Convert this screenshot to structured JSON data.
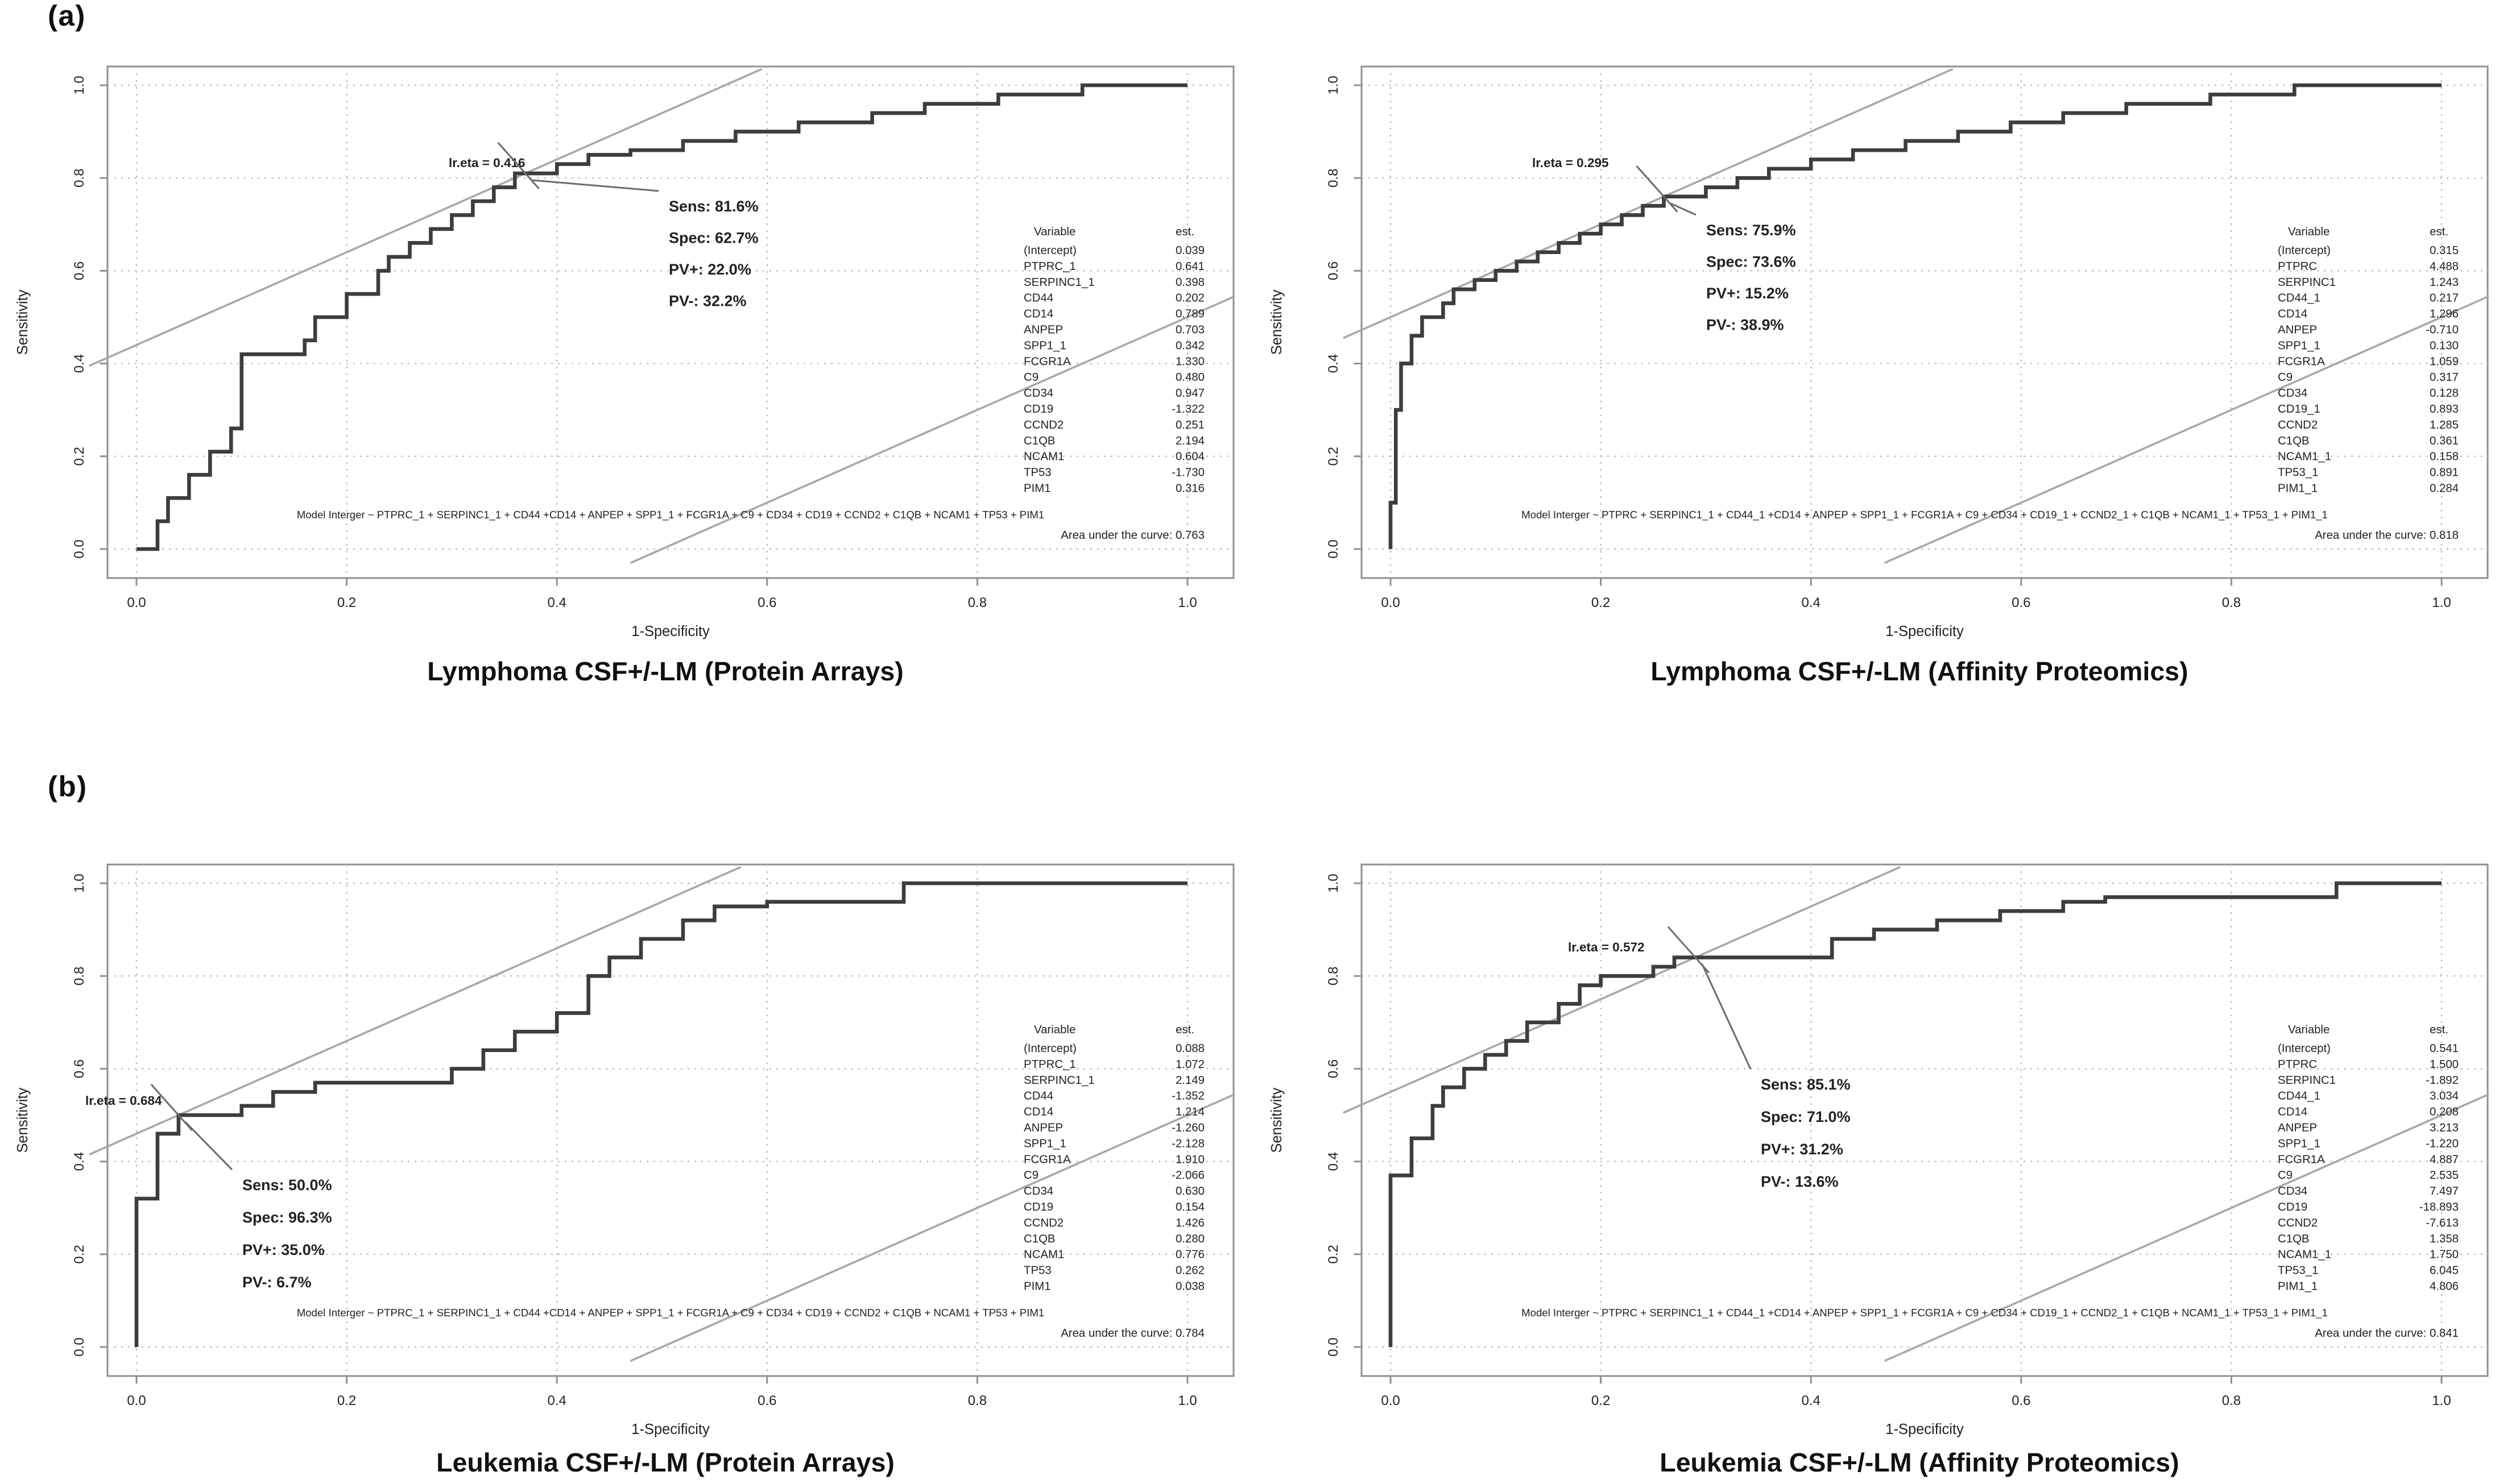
{
  "section_labels": [
    "(a)",
    "(b)"
  ],
  "chart_data": [
    {
      "type": "line",
      "title": "Lymphoma CSF+/-LM (Protein Arrays)",
      "xlabel": "1-Specificity",
      "ylabel": "Sensitivity",
      "xlim": [
        0,
        1
      ],
      "ylim": [
        0,
        1
      ],
      "grid": true,
      "xticks": [
        "0.0",
        "0.2",
        "0.4",
        "0.6",
        "0.8",
        "1.0"
      ],
      "yticks": [
        "0.0",
        "0.2",
        "0.4",
        "0.6",
        "0.8",
        "1.0"
      ],
      "threshold_label": "lr.eta = 0.416",
      "threshold_point": {
        "x": 0.37,
        "y": 0.81
      },
      "metrics": [
        "Sens: 81.6%",
        "Spec: 62.7%",
        "PV+: 22.0%",
        "PV-: 32.2%"
      ],
      "model_formula": "Model Interger ~ PTPRC_1 + SERPINC1_1 + CD44 +CD14 + ANPEP + SPP1_1 + FCGR1A + C9 + CD34 + CD19 + CCND2 + C1QB + NCAM1 + TP53 + PIM1",
      "auc": 0.763,
      "auc_label": "Area under the curve: 0.763",
      "coef_table": {
        "headers": [
          "Variable",
          "est."
        ],
        "rows": [
          [
            "(Intercept)",
            "0.039"
          ],
          [
            "PTPRC_1",
            "0.641"
          ],
          [
            "SERPINC1_1",
            "0.398"
          ],
          [
            "CD44",
            "0.202"
          ],
          [
            "CD14",
            "0.789"
          ],
          [
            "ANPEP",
            "0.703"
          ],
          [
            "SPP1_1",
            "0.342"
          ],
          [
            "FCGR1A",
            "1.330"
          ],
          [
            "C9",
            "0.480"
          ],
          [
            "CD34",
            "0.947"
          ],
          [
            "CD19",
            "-1.322"
          ],
          [
            "CCND2",
            "0.251"
          ],
          [
            "C1QB",
            "2.194"
          ],
          [
            "NCAM1",
            "0.604"
          ],
          [
            "TP53",
            "-1.730"
          ],
          [
            "PIM1",
            "0.316"
          ]
        ]
      },
      "roc_points": [
        [
          0,
          0
        ],
        [
          0.02,
          0
        ],
        [
          0.02,
          0.06
        ],
        [
          0.03,
          0.06
        ],
        [
          0.03,
          0.11
        ],
        [
          0.05,
          0.11
        ],
        [
          0.05,
          0.16
        ],
        [
          0.07,
          0.16
        ],
        [
          0.07,
          0.21
        ],
        [
          0.09,
          0.21
        ],
        [
          0.09,
          0.26
        ],
        [
          0.1,
          0.26
        ],
        [
          0.1,
          0.42
        ],
        [
          0.16,
          0.42
        ],
        [
          0.16,
          0.45
        ],
        [
          0.17,
          0.45
        ],
        [
          0.17,
          0.5
        ],
        [
          0.2,
          0.5
        ],
        [
          0.2,
          0.55
        ],
        [
          0.23,
          0.55
        ],
        [
          0.23,
          0.6
        ],
        [
          0.24,
          0.6
        ],
        [
          0.24,
          0.63
        ],
        [
          0.26,
          0.63
        ],
        [
          0.26,
          0.66
        ],
        [
          0.28,
          0.66
        ],
        [
          0.28,
          0.69
        ],
        [
          0.3,
          0.69
        ],
        [
          0.3,
          0.72
        ],
        [
          0.32,
          0.72
        ],
        [
          0.32,
          0.75
        ],
        [
          0.34,
          0.75
        ],
        [
          0.34,
          0.78
        ],
        [
          0.36,
          0.78
        ],
        [
          0.36,
          0.81
        ],
        [
          0.4,
          0.81
        ],
        [
          0.4,
          0.83
        ],
        [
          0.43,
          0.83
        ],
        [
          0.43,
          0.85
        ],
        [
          0.47,
          0.85
        ],
        [
          0.47,
          0.86
        ],
        [
          0.52,
          0.86
        ],
        [
          0.52,
          0.88
        ],
        [
          0.57,
          0.88
        ],
        [
          0.57,
          0.9
        ],
        [
          0.63,
          0.9
        ],
        [
          0.63,
          0.92
        ],
        [
          0.7,
          0.92
        ],
        [
          0.7,
          0.94
        ],
        [
          0.75,
          0.94
        ],
        [
          0.75,
          0.96
        ],
        [
          0.82,
          0.96
        ],
        [
          0.82,
          0.98
        ],
        [
          0.9,
          0.98
        ],
        [
          0.9,
          1
        ],
        [
          1,
          1
        ]
      ]
    },
    {
      "type": "line",
      "title": "Lymphoma CSF+/-LM (Affinity Proteomics)",
      "xlabel": "1-Specificity",
      "ylabel": "Sensitivity",
      "xlim": [
        0,
        1
      ],
      "ylim": [
        0,
        1
      ],
      "grid": true,
      "xticks": [
        "0.0",
        "0.2",
        "0.4",
        "0.6",
        "0.8",
        "1.0"
      ],
      "yticks": [
        "0.0",
        "0.2",
        "0.4",
        "0.6",
        "0.8",
        "1.0"
      ],
      "threshold_label": "lr.eta = 0.295",
      "threshold_point": {
        "x": 0.26,
        "y": 0.76
      },
      "metrics": [
        "Sens: 75.9%",
        "Spec: 73.6%",
        "PV+: 15.2%",
        "PV-: 38.9%"
      ],
      "model_formula": "Model Interger ~ PTPRC + SERPINC1_1 + CD44_1 +CD14 + ANPEP + SPP1_1 + FCGR1A + C9 + CD34 + CD19_1 + CCND2_1 + C1QB + NCAM1_1 + TP53_1 + PIM1_1",
      "auc": 0.818,
      "auc_label": "Area under the curve: 0.818",
      "coef_table": {
        "headers": [
          "Variable",
          "est."
        ],
        "rows": [
          [
            "(Intercept)",
            "0.315"
          ],
          [
            "PTPRC",
            "4.488"
          ],
          [
            "SERPINC1",
            "1.243"
          ],
          [
            "CD44_1",
            "0.217"
          ],
          [
            "CD14",
            "1.296"
          ],
          [
            "ANPEP",
            "-0.710"
          ],
          [
            "SPP1_1",
            "0.130"
          ],
          [
            "FCGR1A",
            "1.059"
          ],
          [
            "C9",
            "0.317"
          ],
          [
            "CD34",
            "0.128"
          ],
          [
            "CD19_1",
            "0.893"
          ],
          [
            "CCND2",
            "1.285"
          ],
          [
            "C1QB",
            "0.361"
          ],
          [
            "NCAM1_1",
            "0.158"
          ],
          [
            "TP53_1",
            "0.891"
          ],
          [
            "PIM1_1",
            "0.284"
          ]
        ]
      },
      "roc_points": [
        [
          0,
          0
        ],
        [
          0,
          0.1
        ],
        [
          0.005,
          0.1
        ],
        [
          0.005,
          0.3
        ],
        [
          0.01,
          0.3
        ],
        [
          0.01,
          0.4
        ],
        [
          0.02,
          0.4
        ],
        [
          0.02,
          0.46
        ],
        [
          0.03,
          0.46
        ],
        [
          0.03,
          0.5
        ],
        [
          0.05,
          0.5
        ],
        [
          0.05,
          0.53
        ],
        [
          0.06,
          0.53
        ],
        [
          0.06,
          0.56
        ],
        [
          0.08,
          0.56
        ],
        [
          0.08,
          0.58
        ],
        [
          0.1,
          0.58
        ],
        [
          0.1,
          0.6
        ],
        [
          0.12,
          0.6
        ],
        [
          0.12,
          0.62
        ],
        [
          0.14,
          0.62
        ],
        [
          0.14,
          0.64
        ],
        [
          0.16,
          0.64
        ],
        [
          0.16,
          0.66
        ],
        [
          0.18,
          0.66
        ],
        [
          0.18,
          0.68
        ],
        [
          0.2,
          0.68
        ],
        [
          0.2,
          0.7
        ],
        [
          0.22,
          0.7
        ],
        [
          0.22,
          0.72
        ],
        [
          0.24,
          0.72
        ],
        [
          0.24,
          0.74
        ],
        [
          0.26,
          0.74
        ],
        [
          0.26,
          0.76
        ],
        [
          0.3,
          0.76
        ],
        [
          0.3,
          0.78
        ],
        [
          0.33,
          0.78
        ],
        [
          0.33,
          0.8
        ],
        [
          0.36,
          0.8
        ],
        [
          0.36,
          0.82
        ],
        [
          0.4,
          0.82
        ],
        [
          0.4,
          0.84
        ],
        [
          0.44,
          0.84
        ],
        [
          0.44,
          0.86
        ],
        [
          0.49,
          0.86
        ],
        [
          0.49,
          0.88
        ],
        [
          0.54,
          0.88
        ],
        [
          0.54,
          0.9
        ],
        [
          0.59,
          0.9
        ],
        [
          0.59,
          0.92
        ],
        [
          0.64,
          0.92
        ],
        [
          0.64,
          0.94
        ],
        [
          0.7,
          0.94
        ],
        [
          0.7,
          0.96
        ],
        [
          0.78,
          0.96
        ],
        [
          0.78,
          0.98
        ],
        [
          0.86,
          0.98
        ],
        [
          0.86,
          1
        ],
        [
          1,
          1
        ]
      ]
    },
    {
      "type": "line",
      "title": "Leukemia CSF+/-LM (Protein Arrays)",
      "xlabel": "1-Specificity",
      "ylabel": "Sensitivity",
      "xlim": [
        0,
        1
      ],
      "ylim": [
        0,
        1
      ],
      "grid": true,
      "xticks": [
        "0.0",
        "0.2",
        "0.4",
        "0.6",
        "0.8",
        "1.0"
      ],
      "yticks": [
        "0.0",
        "0.2",
        "0.4",
        "0.6",
        "0.8",
        "1.0"
      ],
      "threshold_label": "lr.eta = 0.684",
      "threshold_point": {
        "x": 0.04,
        "y": 0.5
      },
      "metrics": [
        "Sens: 50.0%",
        "Spec: 96.3%",
        "PV+: 35.0%",
        "PV-: 6.7%"
      ],
      "model_formula": "Model Interger ~ PTPRC_1 + SERPINC1_1 + CD44 +CD14 + ANPEP + SPP1_1 + FCGR1A + C9 + CD34 + CD19 + CCND2 + C1QB + NCAM1 + TP53 + PIM1",
      "auc": 0.784,
      "auc_label": "Area under the curve: 0.784",
      "coef_table": {
        "headers": [
          "Variable",
          "est."
        ],
        "rows": [
          [
            "(Intercept)",
            "0.088"
          ],
          [
            "PTPRC_1",
            "1.072"
          ],
          [
            "SERPINC1_1",
            "2.149"
          ],
          [
            "CD44",
            "-1.352"
          ],
          [
            "CD14",
            "1.214"
          ],
          [
            "ANPEP",
            "-1.260"
          ],
          [
            "SPP1_1",
            "-2.128"
          ],
          [
            "FCGR1A",
            "1.910"
          ],
          [
            "C9",
            "-2.066"
          ],
          [
            "CD34",
            "0.630"
          ],
          [
            "CD19",
            "0.154"
          ],
          [
            "CCND2",
            "1.426"
          ],
          [
            "C1QB",
            "0.280"
          ],
          [
            "NCAM1",
            "0.776"
          ],
          [
            "TP53",
            "0.262"
          ],
          [
            "PIM1",
            "0.038"
          ]
        ]
      },
      "roc_points": [
        [
          0,
          0
        ],
        [
          0,
          0.32
        ],
        [
          0.02,
          0.32
        ],
        [
          0.02,
          0.46
        ],
        [
          0.04,
          0.46
        ],
        [
          0.04,
          0.5
        ],
        [
          0.1,
          0.5
        ],
        [
          0.1,
          0.52
        ],
        [
          0.13,
          0.52
        ],
        [
          0.13,
          0.55
        ],
        [
          0.17,
          0.55
        ],
        [
          0.17,
          0.57
        ],
        [
          0.3,
          0.57
        ],
        [
          0.3,
          0.6
        ],
        [
          0.33,
          0.6
        ],
        [
          0.33,
          0.64
        ],
        [
          0.36,
          0.64
        ],
        [
          0.36,
          0.68
        ],
        [
          0.4,
          0.68
        ],
        [
          0.4,
          0.72
        ],
        [
          0.43,
          0.72
        ],
        [
          0.43,
          0.8
        ],
        [
          0.45,
          0.8
        ],
        [
          0.45,
          0.84
        ],
        [
          0.48,
          0.84
        ],
        [
          0.48,
          0.88
        ],
        [
          0.52,
          0.88
        ],
        [
          0.52,
          0.92
        ],
        [
          0.55,
          0.92
        ],
        [
          0.55,
          0.95
        ],
        [
          0.6,
          0.95
        ],
        [
          0.6,
          0.96
        ],
        [
          0.73,
          0.96
        ],
        [
          0.73,
          1
        ],
        [
          1,
          1
        ]
      ]
    },
    {
      "type": "line",
      "title": "Leukemia CSF+/-LM (Affinity Proteomics)",
      "xlabel": "1-Specificity",
      "ylabel": "Sensitivity",
      "xlim": [
        0,
        1
      ],
      "ylim": [
        0,
        1
      ],
      "grid": true,
      "xticks": [
        "0.0",
        "0.2",
        "0.4",
        "0.6",
        "0.8",
        "1.0"
      ],
      "yticks": [
        "0.0",
        "0.2",
        "0.4",
        "0.6",
        "0.8",
        "1.0"
      ],
      "threshold_label": "lr.eta = 0.572",
      "threshold_point": {
        "x": 0.29,
        "y": 0.84
      },
      "metrics": [
        "Sens: 85.1%",
        "Spec: 71.0%",
        "PV+: 31.2%",
        "PV-: 13.6%"
      ],
      "model_formula": "Model Interger ~ PTPRC + SERPINC1_1 + CD44_1 +CD14 + ANPEP + SPP1_1 + FCGR1A + C9 + CD34 + CD19_1 + CCND2_1 + C1QB + NCAM1_1 + TP53_1 + PIM1_1",
      "auc": 0.841,
      "auc_label": "Area under the curve: 0.841",
      "coef_table": {
        "headers": [
          "Variable",
          "est."
        ],
        "rows": [
          [
            "(Intercept)",
            "0.541"
          ],
          [
            "PTPRC",
            "1.500"
          ],
          [
            "SERPINC1",
            "-1.892"
          ],
          [
            "CD44_1",
            "3.034"
          ],
          [
            "CD14",
            "0.208"
          ],
          [
            "ANPEP",
            "3.213"
          ],
          [
            "SPP1_1",
            "-1.220"
          ],
          [
            "FCGR1A",
            "4.887"
          ],
          [
            "C9",
            "2.535"
          ],
          [
            "CD34",
            "7.497"
          ],
          [
            "CD19",
            "-18.893"
          ],
          [
            "CCND2",
            "-7.613"
          ],
          [
            "C1QB",
            "1.358"
          ],
          [
            "NCAM1_1",
            "1.750"
          ],
          [
            "TP53_1",
            "6.045"
          ],
          [
            "PIM1_1",
            "4.806"
          ]
        ]
      },
      "roc_points": [
        [
          0,
          0
        ],
        [
          0,
          0.37
        ],
        [
          0.02,
          0.37
        ],
        [
          0.02,
          0.45
        ],
        [
          0.04,
          0.45
        ],
        [
          0.04,
          0.52
        ],
        [
          0.05,
          0.52
        ],
        [
          0.05,
          0.56
        ],
        [
          0.07,
          0.56
        ],
        [
          0.07,
          0.6
        ],
        [
          0.09,
          0.6
        ],
        [
          0.09,
          0.63
        ],
        [
          0.11,
          0.63
        ],
        [
          0.11,
          0.66
        ],
        [
          0.13,
          0.66
        ],
        [
          0.13,
          0.7
        ],
        [
          0.16,
          0.7
        ],
        [
          0.16,
          0.74
        ],
        [
          0.18,
          0.74
        ],
        [
          0.18,
          0.78
        ],
        [
          0.2,
          0.78
        ],
        [
          0.2,
          0.8
        ],
        [
          0.25,
          0.8
        ],
        [
          0.25,
          0.82
        ],
        [
          0.27,
          0.82
        ],
        [
          0.27,
          0.84
        ],
        [
          0.29,
          0.84
        ],
        [
          0.42,
          0.84
        ],
        [
          0.42,
          0.88
        ],
        [
          0.46,
          0.88
        ],
        [
          0.46,
          0.9
        ],
        [
          0.52,
          0.9
        ],
        [
          0.52,
          0.92
        ],
        [
          0.58,
          0.92
        ],
        [
          0.58,
          0.94
        ],
        [
          0.64,
          0.94
        ],
        [
          0.64,
          0.96
        ],
        [
          0.68,
          0.96
        ],
        [
          0.68,
          0.97
        ],
        [
          0.9,
          0.97
        ],
        [
          0.9,
          1
        ],
        [
          1,
          1
        ]
      ]
    }
  ],
  "colors": {
    "curve": "#3d3d3d",
    "reference_line": "#a8a8a8",
    "grid": "#bdbdbd",
    "frame": "#8f8f8f",
    "text": "#1c1c1c"
  }
}
